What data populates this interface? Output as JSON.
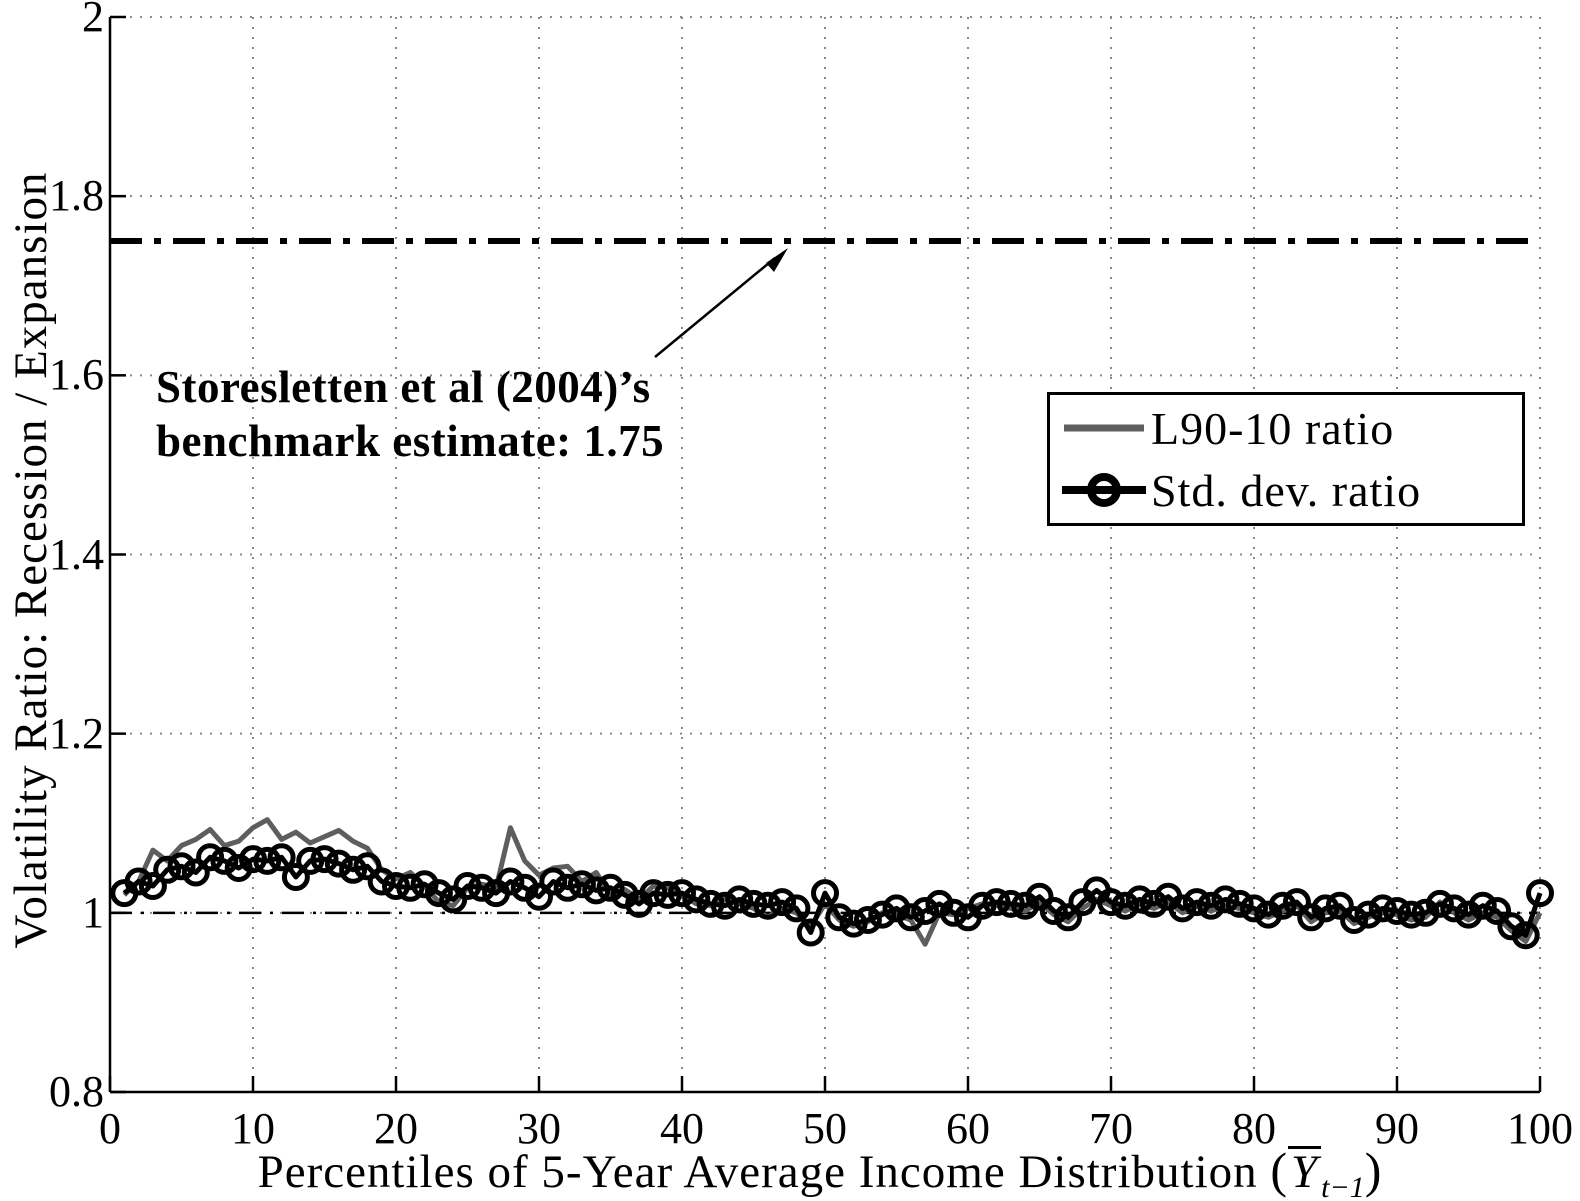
{
  "figure": {
    "background": "#ffffff",
    "annotation": {
      "line1": "Storesletten et al (2004)’s",
      "line2": "benchmark estimate: 1.75"
    }
  },
  "chart_data": {
    "type": "line",
    "title": "",
    "xlabel_main": "Percentiles of 5-Year Average Income Distribution ",
    "xlabel_math": {
      "open": "(",
      "symbol": "Y",
      "subscript": "t−1",
      "close": ")"
    },
    "ylabel": "Volatility Ratio: Recession / Expansion",
    "xlim": [
      0,
      100
    ],
    "ylim": [
      0.8,
      2
    ],
    "grid": "dotted",
    "grid_color": "#888888",
    "axis_color": "#000000",
    "legend_position": "upper-right",
    "xtick_values": [
      0,
      10,
      20,
      30,
      40,
      50,
      60,
      70,
      80,
      90,
      100
    ],
    "xtick_labels": [
      "0",
      "10",
      "20",
      "30",
      "40",
      "50",
      "60",
      "70",
      "80",
      "90",
      "100"
    ],
    "ytick_values": [
      2,
      1.8,
      1.6,
      1.4,
      1.2,
      1,
      0.8
    ],
    "ytick_labels": [
      "2",
      "1.8",
      "1.6",
      "1.4",
      "1.2",
      "1",
      "0.8"
    ],
    "x_range": [
      1,
      100
    ],
    "series": [
      {
        "name": "L90-10 ratio",
        "color": "#5e5e5e",
        "marker": "none",
        "line_width": 5,
        "values": [
          1.02,
          1.035,
          1.07,
          1.058,
          1.075,
          1.082,
          1.093,
          1.075,
          1.08,
          1.095,
          1.104,
          1.082,
          1.09,
          1.078,
          1.085,
          1.092,
          1.08,
          1.072,
          1.048,
          1.038,
          1.045,
          1.03,
          1.012,
          1.008,
          1.028,
          1.032,
          1.028,
          1.095,
          1.058,
          1.042,
          1.05,
          1.052,
          1.035,
          1.045,
          1.02,
          1.026,
          1.015,
          1.03,
          1.028,
          1.02,
          1.01,
          1.008,
          1.016,
          1.01,
          1.005,
          0.995,
          1.005,
          1.0,
          0.985,
          1.01,
          0.992,
          0.985,
          0.99,
          1.0,
          0.998,
          0.992,
          0.965,
          1.0,
          0.998,
          1.005,
          1.01,
          1.008,
          1.005,
          1.002,
          1.012,
          0.998,
          0.99,
          1.005,
          1.015,
          1.008,
          1.002,
          1.01,
          1.005,
          1.012,
          1.0,
          1.008,
          1.002,
          1.008,
          1.005,
          1.0,
          0.995,
          1.002,
          1.008,
          0.99,
          1.0,
          1.002,
          0.988,
          0.995,
          1.0,
          0.998,
          0.992,
          0.995,
          1.012,
          1.0,
          0.992,
          1.0,
          0.995,
          0.98,
          0.968,
          1.0
        ]
      },
      {
        "name": "Std. dev. ratio",
        "color": "#000000",
        "marker": "circle",
        "line_width": 5,
        "values": [
          1.022,
          1.035,
          1.03,
          1.048,
          1.052,
          1.045,
          1.062,
          1.058,
          1.05,
          1.06,
          1.058,
          1.062,
          1.04,
          1.058,
          1.06,
          1.055,
          1.048,
          1.052,
          1.035,
          1.03,
          1.028,
          1.032,
          1.022,
          1.015,
          1.03,
          1.028,
          1.022,
          1.035,
          1.028,
          1.018,
          1.035,
          1.028,
          1.032,
          1.025,
          1.028,
          1.02,
          1.01,
          1.022,
          1.02,
          1.022,
          1.015,
          1.01,
          1.008,
          1.015,
          1.01,
          1.008,
          1.012,
          1.005,
          0.978,
          1.022,
          0.995,
          0.988,
          0.992,
          0.998,
          1.005,
          0.995,
          1.002,
          1.01,
          1.0,
          0.995,
          1.008,
          1.012,
          1.01,
          1.008,
          1.018,
          1.002,
          0.995,
          1.012,
          1.025,
          1.012,
          1.008,
          1.015,
          1.01,
          1.018,
          1.005,
          1.012,
          1.008,
          1.015,
          1.01,
          1.005,
          0.998,
          1.008,
          1.012,
          0.995,
          1.005,
          1.008,
          0.992,
          0.998,
          1.005,
          1.002,
          0.998,
          1.0,
          1.01,
          1.005,
          0.998,
          1.008,
          1.002,
          0.985,
          0.975,
          1.022
        ]
      }
    ],
    "reference_lines": [
      {
        "value": 1.75,
        "style": "dash-dot-bold",
        "color": "#000000",
        "annotation": "Storesletten et al (2004)’s benchmark estimate: 1.75"
      },
      {
        "value": 1.0,
        "style": "dash-dot-thin",
        "color": "#000000",
        "annotation": ""
      }
    ]
  }
}
